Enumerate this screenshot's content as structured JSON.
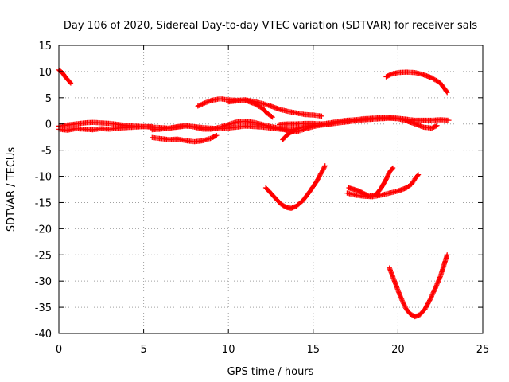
{
  "chart_data": {
    "type": "scatter",
    "title": "Day 106 of 2020, Sidereal Day-to-day VTEC variation (SDTVAR) for receiver sals",
    "xlabel": "GPS time / hours",
    "ylabel": "SDTVAR / TECUs",
    "xlim": [
      0,
      25
    ],
    "ylim": [
      -40,
      15
    ],
    "x_ticks": [
      0,
      5,
      10,
      15,
      20,
      25
    ],
    "y_ticks": [
      -40,
      -35,
      -30,
      -25,
      -20,
      -15,
      -10,
      -5,
      0,
      5,
      10,
      15
    ],
    "grid": true,
    "grid_style": "dotted",
    "marker": "plus",
    "legend": "none",
    "series_color": "#ff0000",
    "series": [
      {
        "points": [
          [
            0.0,
            10.3
          ],
          [
            0.2,
            9.8
          ],
          [
            0.4,
            8.9
          ],
          [
            0.7,
            7.8
          ]
        ]
      },
      {
        "points": [
          [
            0.0,
            -1.0
          ],
          [
            0.5,
            -1.2
          ],
          [
            1.0,
            -0.9
          ],
          [
            1.5,
            -1.0
          ],
          [
            2.0,
            -1.1
          ],
          [
            2.5,
            -0.9
          ],
          [
            3.0,
            -1.0
          ],
          [
            3.5,
            -0.8
          ],
          [
            4.0,
            -0.7
          ],
          [
            4.5,
            -0.6
          ],
          [
            5.0,
            -0.5
          ],
          [
            5.5,
            -0.5
          ]
        ]
      },
      {
        "points": [
          [
            0.0,
            -0.4
          ],
          [
            0.5,
            -0.2
          ],
          [
            1.0,
            0.0
          ],
          [
            1.5,
            0.2
          ],
          [
            2.0,
            0.3
          ],
          [
            2.5,
            0.2
          ],
          [
            3.0,
            0.1
          ],
          [
            3.5,
            -0.1
          ],
          [
            4.0,
            -0.3
          ],
          [
            4.5,
            -0.4
          ],
          [
            5.0,
            -0.5
          ],
          [
            5.5,
            -0.6
          ],
          [
            6.0,
            -0.7
          ],
          [
            6.5,
            -0.8
          ],
          [
            7.0,
            -0.6
          ],
          [
            7.5,
            -0.4
          ],
          [
            8.0,
            -0.5
          ],
          [
            8.5,
            -0.7
          ],
          [
            9.0,
            -0.8
          ],
          [
            9.5,
            -0.9
          ],
          [
            10.0,
            -0.8
          ],
          [
            10.5,
            -0.6
          ],
          [
            11.0,
            -0.4
          ],
          [
            11.5,
            -0.5
          ],
          [
            12.0,
            -0.6
          ],
          [
            12.5,
            -0.8
          ],
          [
            13.0,
            -1.0
          ],
          [
            13.5,
            -1.1
          ],
          [
            14.0,
            -1.0
          ]
        ]
      },
      {
        "points": [
          [
            5.5,
            -2.6
          ],
          [
            6.0,
            -2.8
          ],
          [
            6.5,
            -3.0
          ],
          [
            7.0,
            -2.9
          ],
          [
            7.5,
            -3.2
          ],
          [
            8.0,
            -3.4
          ],
          [
            8.5,
            -3.2
          ],
          [
            9.0,
            -2.7
          ],
          [
            9.3,
            -2.2
          ]
        ]
      },
      {
        "points": [
          [
            5.5,
            -1.1
          ],
          [
            6.0,
            -1.0
          ],
          [
            6.5,
            -0.8
          ],
          [
            7.0,
            -0.5
          ],
          [
            7.5,
            -0.3
          ],
          [
            8.0,
            -0.6
          ],
          [
            8.5,
            -1.0
          ],
          [
            9.0,
            -1.0
          ],
          [
            9.5,
            -0.6
          ],
          [
            10.0,
            -0.1
          ],
          [
            10.5,
            0.4
          ],
          [
            11.0,
            0.5
          ],
          [
            11.5,
            0.3
          ],
          [
            12.0,
            -0.1
          ],
          [
            12.5,
            -0.5
          ],
          [
            13.0,
            -0.8
          ],
          [
            13.5,
            -1.3
          ],
          [
            14.0,
            -1.5
          ],
          [
            14.5,
            -1.0
          ],
          [
            15.0,
            -0.5
          ],
          [
            15.5,
            -0.2
          ],
          [
            16.0,
            0.0
          ],
          [
            16.5,
            0.2
          ],
          [
            17.0,
            0.4
          ],
          [
            17.5,
            0.6
          ],
          [
            18.0,
            0.8
          ],
          [
            18.5,
            0.9
          ],
          [
            19.0,
            1.0
          ],
          [
            19.5,
            1.1
          ],
          [
            20.0,
            1.0
          ],
          [
            20.5,
            0.6
          ],
          [
            21.0,
            0.0
          ],
          [
            21.5,
            -0.6
          ],
          [
            22.0,
            -0.8
          ],
          [
            22.3,
            -0.3
          ]
        ]
      },
      {
        "points": [
          [
            13.0,
            -0.1
          ],
          [
            13.5,
            0.0
          ],
          [
            14.0,
            0.0
          ],
          [
            14.5,
            0.1
          ],
          [
            15.0,
            0.1
          ],
          [
            15.5,
            0.0
          ],
          [
            16.0,
            0.2
          ],
          [
            16.5,
            0.5
          ],
          [
            17.0,
            0.7
          ],
          [
            17.5,
            0.8
          ],
          [
            18.0,
            1.0
          ],
          [
            18.5,
            1.1
          ],
          [
            19.0,
            1.2
          ],
          [
            19.5,
            1.2
          ],
          [
            20.0,
            1.1
          ],
          [
            20.5,
            0.9
          ],
          [
            21.0,
            0.7
          ],
          [
            21.5,
            0.7
          ],
          [
            22.0,
            0.7
          ],
          [
            22.5,
            0.8
          ],
          [
            23.0,
            0.7
          ]
        ]
      },
      {
        "points": [
          [
            13.2,
            -3.0
          ],
          [
            13.5,
            -2.0
          ],
          [
            14.0,
            -1.0
          ],
          [
            14.5,
            -0.5
          ],
          [
            15.0,
            -0.3
          ],
          [
            15.5,
            -0.2
          ],
          [
            16.0,
            -0.1
          ]
        ]
      },
      {
        "points": [
          [
            8.2,
            3.4
          ],
          [
            8.6,
            4.0
          ],
          [
            9.0,
            4.5
          ],
          [
            9.5,
            4.8
          ],
          [
            10.0,
            4.6
          ],
          [
            10.5,
            4.5
          ],
          [
            11.0,
            4.6
          ],
          [
            11.5,
            4.3
          ],
          [
            12.0,
            3.9
          ],
          [
            12.5,
            3.4
          ],
          [
            13.0,
            2.8
          ],
          [
            13.5,
            2.4
          ],
          [
            14.0,
            2.1
          ],
          [
            14.5,
            1.8
          ],
          [
            15.0,
            1.7
          ],
          [
            15.5,
            1.5
          ]
        ]
      },
      {
        "points": [
          [
            10.0,
            4.2
          ],
          [
            10.5,
            4.4
          ],
          [
            11.0,
            4.5
          ],
          [
            11.5,
            3.9
          ],
          [
            12.0,
            3.0
          ],
          [
            12.3,
            2.0
          ],
          [
            12.6,
            1.3
          ]
        ]
      },
      {
        "points": [
          [
            19.3,
            9.0
          ],
          [
            19.6,
            9.5
          ],
          [
            20.0,
            9.8
          ],
          [
            20.5,
            9.9
          ],
          [
            21.0,
            9.8
          ],
          [
            21.5,
            9.4
          ],
          [
            22.0,
            8.8
          ],
          [
            22.5,
            7.8
          ],
          [
            22.8,
            6.5
          ],
          [
            22.9,
            6.0
          ]
        ]
      },
      {
        "points": [
          [
            12.2,
            -12.2
          ],
          [
            12.5,
            -13.2
          ],
          [
            12.8,
            -14.3
          ],
          [
            13.1,
            -15.3
          ],
          [
            13.4,
            -15.9
          ],
          [
            13.7,
            -16.1
          ],
          [
            14.0,
            -15.7
          ],
          [
            14.4,
            -14.6
          ],
          [
            14.8,
            -12.9
          ],
          [
            15.2,
            -11.0
          ],
          [
            15.5,
            -9.2
          ],
          [
            15.7,
            -8.0
          ]
        ]
      },
      {
        "points": [
          [
            17.1,
            -12.2
          ],
          [
            17.4,
            -12.5
          ],
          [
            17.7,
            -12.8
          ],
          [
            18.0,
            -13.3
          ],
          [
            18.3,
            -13.8
          ],
          [
            18.7,
            -13.5
          ],
          [
            19.0,
            -12.3
          ],
          [
            19.3,
            -10.6
          ],
          [
            19.5,
            -9.2
          ],
          [
            19.7,
            -8.4
          ]
        ]
      },
      {
        "points": [
          [
            17.0,
            -13.2
          ],
          [
            17.5,
            -13.6
          ],
          [
            18.0,
            -13.8
          ],
          [
            18.5,
            -13.9
          ],
          [
            19.0,
            -13.6
          ],
          [
            19.5,
            -13.2
          ],
          [
            20.0,
            -12.8
          ],
          [
            20.5,
            -12.2
          ],
          [
            20.8,
            -11.5
          ],
          [
            21.0,
            -10.5
          ],
          [
            21.2,
            -9.7
          ]
        ]
      },
      {
        "points": [
          [
            19.5,
            -27.5
          ],
          [
            19.7,
            -29.2
          ],
          [
            19.9,
            -30.9
          ],
          [
            20.1,
            -32.6
          ],
          [
            20.3,
            -34.1
          ],
          [
            20.5,
            -35.4
          ],
          [
            20.7,
            -36.2
          ],
          [
            21.0,
            -36.8
          ],
          [
            21.3,
            -36.4
          ],
          [
            21.6,
            -35.3
          ],
          [
            21.9,
            -33.5
          ],
          [
            22.2,
            -31.4
          ],
          [
            22.5,
            -29.1
          ],
          [
            22.7,
            -27.1
          ],
          [
            22.9,
            -25.0
          ]
        ]
      }
    ]
  }
}
